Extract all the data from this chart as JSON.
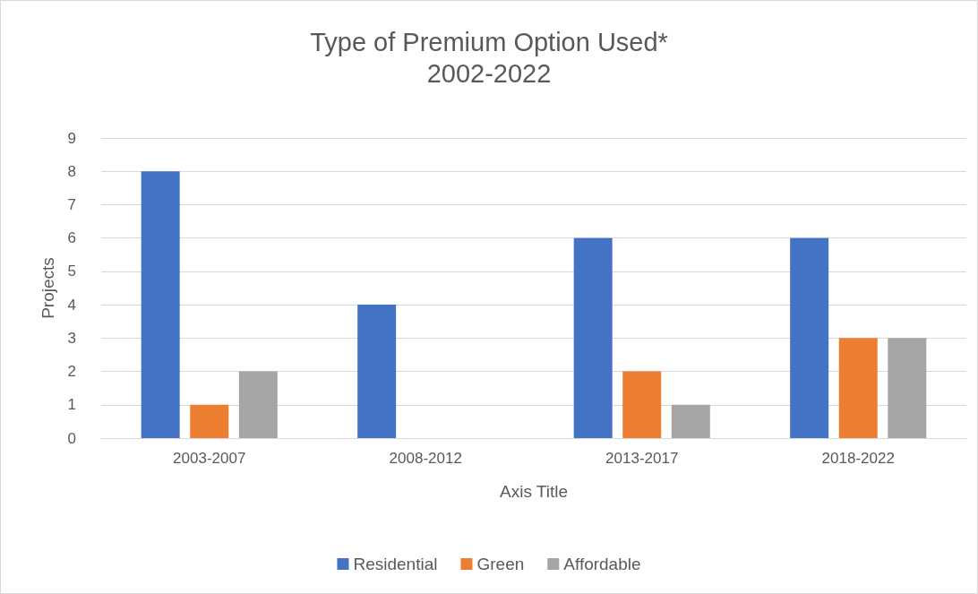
{
  "chart_data": {
    "type": "bar",
    "title": "Type of Premium Option Used*",
    "subtitle": "2002-2022",
    "xlabel": "Axis Title",
    "ylabel": "Projects",
    "categories": [
      "2003-2007",
      "2008-2012",
      "2013-2017",
      "2018-2022"
    ],
    "series": [
      {
        "name": "Residential",
        "color": "#4472c4",
        "values": [
          8,
          4,
          6,
          6
        ]
      },
      {
        "name": "Green",
        "color": "#ed7d31",
        "values": [
          1,
          0,
          2,
          3
        ]
      },
      {
        "name": "Affordable",
        "color": "#a5a5a5",
        "values": [
          2,
          0,
          1,
          3
        ]
      }
    ],
    "ylim": [
      0,
      9
    ],
    "yticks": [
      0,
      1,
      2,
      3,
      4,
      5,
      6,
      7,
      8,
      9
    ],
    "grid": "y",
    "legend": "bottom"
  }
}
